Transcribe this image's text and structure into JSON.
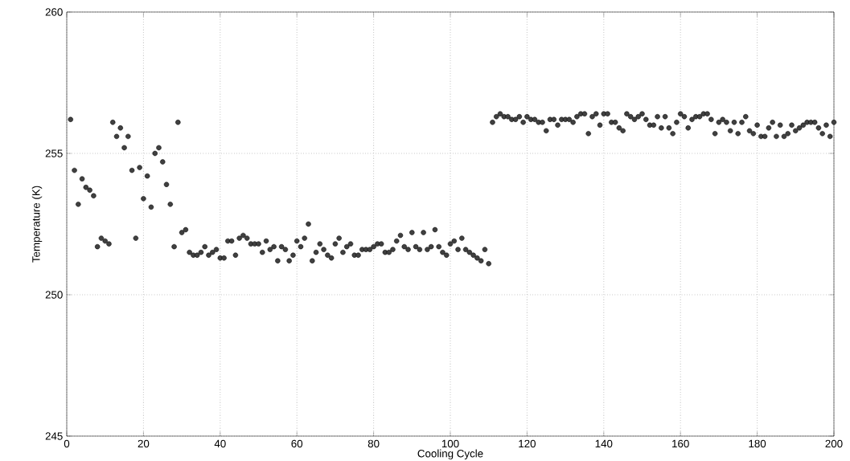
{
  "chart_data": {
    "type": "scatter",
    "xlabel": "Cooling Cycle",
    "ylabel": "Temperature (K)",
    "xlim": [
      0,
      200
    ],
    "ylim": [
      245,
      260
    ],
    "xticks": [
      0,
      20,
      40,
      60,
      80,
      100,
      120,
      140,
      160,
      180,
      200
    ],
    "yticks": [
      245,
      250,
      255,
      260
    ],
    "grid": true,
    "marker": "circle",
    "series": [
      {
        "color": "#404040",
        "x": [
          1,
          2,
          3,
          4,
          5,
          6,
          7,
          8,
          9,
          10,
          11,
          12,
          13,
          14,
          15,
          16,
          17,
          18,
          19,
          20,
          21,
          22,
          23,
          24,
          25,
          26,
          27,
          28,
          29,
          30,
          31,
          32,
          33,
          34,
          35,
          36,
          37,
          38,
          39,
          40,
          41,
          42,
          43,
          44,
          45,
          46,
          47,
          48,
          49,
          50,
          51,
          52,
          53,
          54,
          55,
          56,
          57,
          58,
          59,
          60,
          61,
          62,
          63,
          64,
          65,
          66,
          67,
          68,
          69,
          70,
          71,
          72,
          73,
          74,
          75,
          76,
          77,
          78,
          79,
          80,
          81,
          82,
          83,
          84,
          85,
          86,
          87,
          88,
          89,
          90,
          91,
          92,
          93,
          94,
          95,
          96,
          97,
          98,
          99,
          100,
          101,
          102,
          103,
          104,
          105,
          106,
          107,
          108,
          109,
          110,
          111,
          112,
          113,
          114,
          115,
          116,
          117,
          118,
          119,
          120,
          121,
          122,
          123,
          124,
          125,
          126,
          127,
          128,
          129,
          130,
          131,
          132,
          133,
          134,
          135,
          136,
          137,
          138,
          139,
          140,
          141,
          142,
          143,
          144,
          145,
          146,
          147,
          148,
          149,
          150,
          151,
          152,
          153,
          154,
          155,
          156,
          157,
          158,
          159,
          160,
          161,
          162,
          163,
          164,
          165,
          166,
          167,
          168,
          169,
          170,
          171,
          172,
          173,
          174,
          175,
          176,
          177,
          178,
          179,
          180,
          181,
          182,
          183,
          184,
          185,
          186,
          187,
          188,
          189,
          190,
          191,
          192,
          193,
          194,
          195,
          196,
          197,
          198,
          199,
          200
        ],
        "values": [
          256.2,
          254.4,
          253.2,
          254.1,
          253.8,
          253.7,
          253.5,
          251.7,
          252.0,
          251.9,
          251.8,
          256.1,
          255.6,
          255.9,
          255.2,
          255.6,
          254.4,
          252.0,
          254.5,
          253.4,
          254.2,
          253.1,
          255.0,
          255.2,
          254.7,
          253.9,
          253.2,
          251.7,
          256.1,
          252.2,
          252.3,
          251.5,
          251.4,
          251.4,
          251.5,
          251.7,
          251.4,
          251.5,
          251.6,
          251.3,
          251.3,
          251.9,
          251.9,
          251.4,
          252.0,
          252.1,
          252.0,
          251.8,
          251.8,
          251.8,
          251.5,
          251.9,
          251.6,
          251.7,
          251.2,
          251.7,
          251.6,
          251.2,
          251.4,
          251.9,
          251.7,
          252.0,
          252.5,
          251.2,
          251.5,
          251.8,
          251.6,
          251.4,
          251.3,
          251.8,
          252.0,
          251.5,
          251.7,
          251.8,
          251.4,
          251.4,
          251.6,
          251.6,
          251.6,
          251.7,
          251.8,
          251.8,
          251.5,
          251.5,
          251.6,
          251.9,
          252.1,
          251.7,
          251.6,
          252.2,
          251.7,
          251.6,
          252.2,
          251.6,
          251.7,
          252.3,
          251.7,
          251.5,
          251.4,
          251.8,
          251.9,
          251.6,
          252.0,
          251.6,
          251.5,
          251.4,
          251.3,
          251.2,
          251.6,
          251.1,
          256.1,
          256.3,
          256.4,
          256.3,
          256.3,
          256.2,
          256.2,
          256.3,
          256.1,
          256.3,
          256.2,
          256.2,
          256.1,
          256.1,
          255.8,
          256.2,
          256.2,
          256.0,
          256.2,
          256.2,
          256.2,
          256.1,
          256.3,
          256.4,
          256.4,
          255.7,
          256.3,
          256.4,
          256.0,
          256.4,
          256.4,
          256.1,
          256.1,
          255.9,
          255.8,
          256.4,
          256.3,
          256.2,
          256.3,
          256.4,
          256.2,
          256.0,
          256.0,
          256.3,
          255.9,
          256.3,
          255.9,
          255.7,
          256.1,
          256.4,
          256.3,
          255.9,
          256.2,
          256.3,
          256.3,
          256.4,
          256.4,
          256.2,
          255.7,
          256.1,
          256.2,
          256.1,
          255.8,
          256.1,
          255.7,
          256.1,
          256.3,
          255.8,
          255.7,
          256.0,
          255.6,
          255.6,
          255.9,
          256.1,
          255.6,
          256.0,
          255.6,
          255.7,
          256.0,
          255.8,
          255.9,
          256.0,
          256.1,
          256.1,
          256.1,
          255.9,
          255.7,
          256.0,
          255.6,
          256.1
        ]
      }
    ]
  }
}
